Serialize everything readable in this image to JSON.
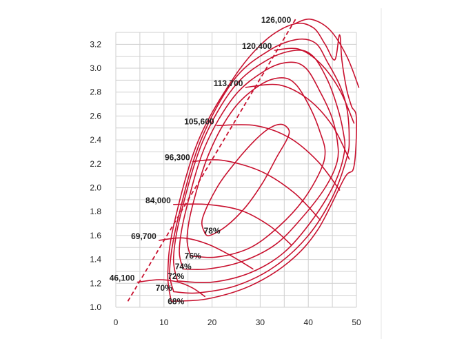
{
  "chart_data": {
    "type": "line",
    "title": "",
    "xlabel": "",
    "ylabel": "",
    "xlim": [
      0,
      50
    ],
    "ylim": [
      1.0,
      3.3
    ],
    "xticks": [
      "0",
      "10",
      "20",
      "30",
      "40",
      "50"
    ],
    "yticks": [
      "1.0",
      "1.2",
      "1.4",
      "1.6",
      "1.8",
      "2.0",
      "2.2",
      "2.4",
      "2.6",
      "2.8",
      "3.0",
      "3.2"
    ],
    "grid": true,
    "line_color": "#c8102e",
    "surge_line": [
      [
        2.5,
        1.05
      ],
      [
        37.5,
        3.42
      ]
    ],
    "speed_lines": [
      {
        "label": "46,100",
        "points": [
          [
            4.5,
            1.21
          ],
          [
            9,
            1.23
          ],
          [
            13,
            1.21
          ],
          [
            16,
            1.16
          ],
          [
            18.5,
            1.09
          ]
        ]
      },
      {
        "label": "69,700",
        "points": [
          [
            9,
            1.56
          ],
          [
            14,
            1.58
          ],
          [
            19,
            1.53
          ],
          [
            24,
            1.43
          ],
          [
            28.5,
            1.32
          ]
        ]
      },
      {
        "label": "84,000",
        "points": [
          [
            12,
            1.86
          ],
          [
            19,
            1.86
          ],
          [
            26,
            1.81
          ],
          [
            32,
            1.68
          ],
          [
            36.5,
            1.52
          ]
        ]
      },
      {
        "label": "96,300",
        "points": [
          [
            16,
            2.22
          ],
          [
            22,
            2.23
          ],
          [
            30,
            2.14
          ],
          [
            37,
            1.96
          ],
          [
            42.5,
            1.73
          ]
        ]
      },
      {
        "label": "105,600",
        "points": [
          [
            21,
            2.52
          ],
          [
            29,
            2.52
          ],
          [
            36,
            2.42
          ],
          [
            42,
            2.22
          ],
          [
            46.5,
            1.98
          ]
        ]
      },
      {
        "label": "113,700",
        "points": [
          [
            27,
            2.84
          ],
          [
            34,
            2.86
          ],
          [
            40,
            2.74
          ],
          [
            45,
            2.52
          ],
          [
            48.5,
            2.24
          ]
        ]
      },
      {
        "label": "120,400",
        "points": [
          [
            33,
            3.15
          ],
          [
            38,
            3.16
          ],
          [
            42.5,
            3.04
          ],
          [
            46.5,
            2.82
          ],
          [
            49.5,
            2.54
          ]
        ]
      },
      {
        "label": "126,000",
        "points": [
          [
            37,
            3.37
          ],
          [
            40.5,
            3.41
          ],
          [
            44.5,
            3.32
          ],
          [
            48,
            3.1
          ],
          [
            50.5,
            2.84
          ]
        ]
      }
    ],
    "efficiency_islands": [
      {
        "label": "68%",
        "label_at": [
          12.5,
          1.05
        ],
        "points": [
          [
            11.5,
            1.05
          ],
          [
            10.8,
            1.28
          ],
          [
            12,
            1.68
          ],
          [
            17,
            2.38
          ],
          [
            24.5,
            2.92
          ],
          [
            31,
            3.23
          ],
          [
            37,
            3.37
          ],
          [
            41,
            3.34
          ],
          [
            43.5,
            3.2
          ],
          [
            45.5,
            3.07
          ],
          [
            46.5,
            3.28
          ],
          [
            47,
            3.06
          ],
          [
            48,
            2.82
          ],
          [
            49,
            2.68
          ],
          [
            50,
            2.58
          ],
          [
            49.5,
            2.18
          ],
          [
            47.5,
            2.08
          ],
          [
            42,
            1.65
          ],
          [
            36,
            1.38
          ],
          [
            28,
            1.18
          ],
          [
            19,
            1.07
          ],
          [
            11.5,
            1.05
          ]
        ]
      },
      {
        "label": "70%",
        "label_at": [
          10,
          1.16
        ],
        "points": [
          [
            12,
            1.13
          ],
          [
            11.2,
            1.32
          ],
          [
            12.8,
            1.72
          ],
          [
            17.5,
            2.38
          ],
          [
            24.5,
            2.9
          ],
          [
            31.5,
            3.14
          ],
          [
            37.5,
            3.24
          ],
          [
            41.5,
            3.21
          ],
          [
            44,
            3.05
          ],
          [
            46.5,
            2.86
          ],
          [
            48,
            2.67
          ],
          [
            48.5,
            2.42
          ],
          [
            48,
            2.25
          ],
          [
            45,
            1.92
          ],
          [
            40,
            1.6
          ],
          [
            33,
            1.34
          ],
          [
            25,
            1.18
          ],
          [
            17,
            1.12
          ],
          [
            12,
            1.13
          ]
        ]
      },
      {
        "label": "72%",
        "label_at": [
          12.5,
          1.26
        ],
        "points": [
          [
            12.8,
            1.22
          ],
          [
            12,
            1.42
          ],
          [
            13.5,
            1.78
          ],
          [
            18,
            2.38
          ],
          [
            24.5,
            2.84
          ],
          [
            31.5,
            3.07
          ],
          [
            37.5,
            3.15
          ],
          [
            41,
            3.1
          ],
          [
            44,
            2.9
          ],
          [
            46,
            2.68
          ],
          [
            47.2,
            2.48
          ],
          [
            47.5,
            2.3
          ],
          [
            45.5,
            2.04
          ],
          [
            41,
            1.74
          ],
          [
            35,
            1.46
          ],
          [
            28,
            1.29
          ],
          [
            20,
            1.21
          ],
          [
            12.8,
            1.22
          ]
        ]
      },
      {
        "label": "74%",
        "label_at": [
          14,
          1.34
        ],
        "points": [
          [
            14,
            1.32
          ],
          [
            13.2,
            1.48
          ],
          [
            14.5,
            1.8
          ],
          [
            18.5,
            2.34
          ],
          [
            24.5,
            2.76
          ],
          [
            31,
            2.98
          ],
          [
            36,
            3.05
          ],
          [
            39.5,
            3.0
          ],
          [
            42.5,
            2.8
          ],
          [
            44.8,
            2.6
          ],
          [
            46,
            2.4
          ],
          [
            46,
            2.22
          ],
          [
            43.5,
            2.0
          ],
          [
            38.5,
            1.74
          ],
          [
            33,
            1.52
          ],
          [
            26,
            1.38
          ],
          [
            19,
            1.32
          ],
          [
            14,
            1.32
          ]
        ]
      },
      {
        "label": "76%",
        "label_at": [
          16,
          1.43
        ],
        "points": [
          [
            15.5,
            1.43
          ],
          [
            14.8,
            1.58
          ],
          [
            16,
            1.86
          ],
          [
            19.5,
            2.3
          ],
          [
            24.5,
            2.66
          ],
          [
            30,
            2.86
          ],
          [
            34.5,
            2.92
          ],
          [
            37.5,
            2.86
          ],
          [
            40.5,
            2.66
          ],
          [
            42.5,
            2.46
          ],
          [
            43.5,
            2.3
          ],
          [
            42.5,
            2.14
          ],
          [
            39,
            1.9
          ],
          [
            34,
            1.68
          ],
          [
            28,
            1.5
          ],
          [
            21,
            1.42
          ],
          [
            15.5,
            1.43
          ]
        ]
      },
      {
        "label": "78%",
        "label_at": [
          20,
          1.64
        ],
        "points": [
          [
            18.5,
            1.62
          ],
          [
            18,
            1.74
          ],
          [
            21,
            2.0
          ],
          [
            25,
            2.22
          ],
          [
            29,
            2.4
          ],
          [
            32,
            2.5
          ],
          [
            34.5,
            2.53
          ],
          [
            36,
            2.48
          ],
          [
            35.5,
            2.4
          ],
          [
            33.5,
            2.26
          ],
          [
            30.5,
            2.04
          ],
          [
            27,
            1.84
          ],
          [
            23,
            1.68
          ],
          [
            19.5,
            1.6
          ],
          [
            18.5,
            1.62
          ]
        ]
      }
    ]
  }
}
